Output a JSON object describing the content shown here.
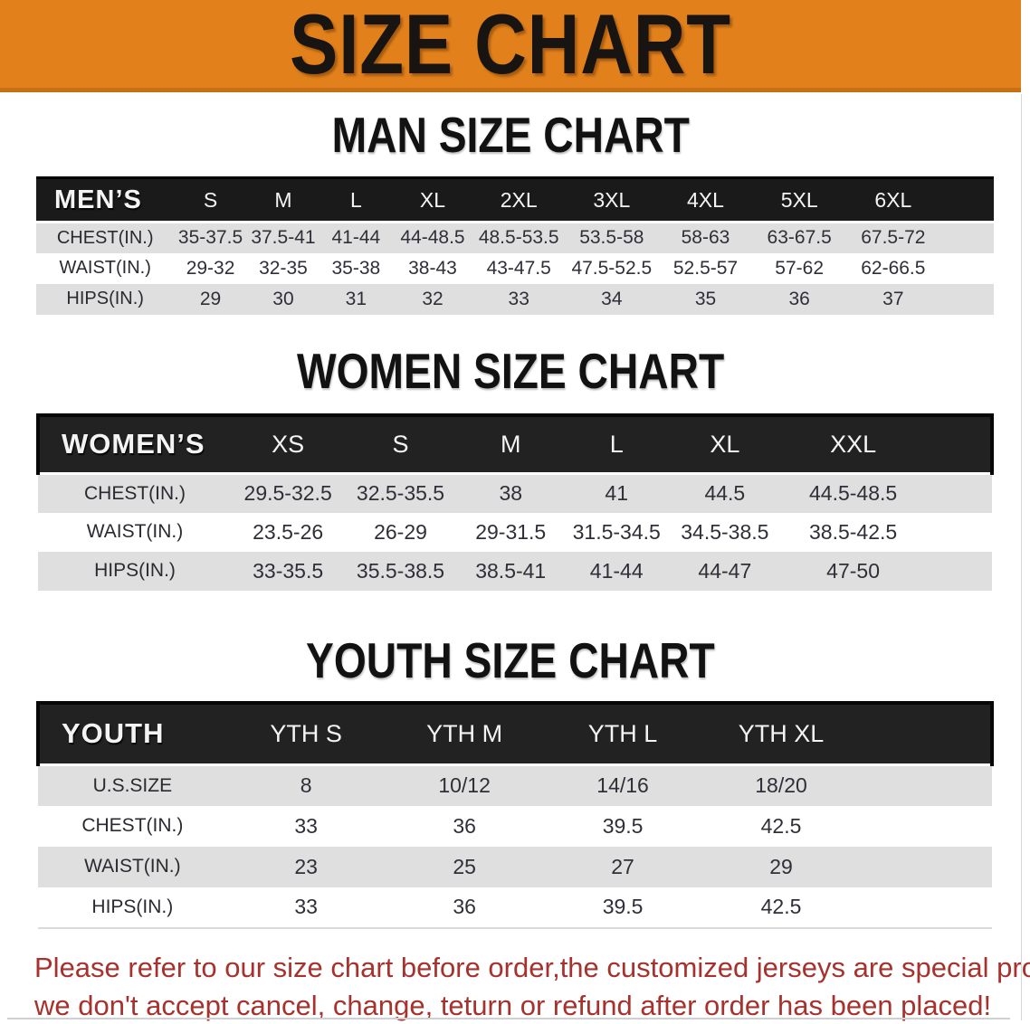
{
  "banner": {
    "title": "SIZE CHART"
  },
  "sections": {
    "men": {
      "heading": "MAN SIZE CHART"
    },
    "women": {
      "heading": "WOMEN SIZE CHART"
    },
    "youth": {
      "heading": "YOUTH SIZE CHART"
    }
  },
  "tables": {
    "men": {
      "label": "MEN’S",
      "sizes": [
        "S",
        "M",
        "L",
        "XL",
        "2XL",
        "3XL",
        "4XL",
        "5XL",
        "6XL"
      ],
      "col_widths": [
        "14.4%",
        "7.6%",
        "7.6%",
        "7.6%",
        "8.4%",
        "9.6%",
        "9.8%",
        "9.8%",
        "9.8%",
        "9.8%",
        "5.6%"
      ],
      "rows": [
        {
          "label": "CHEST(IN.)",
          "values": [
            "35-37.5",
            "37.5-41",
            "41-44",
            "44-48.5",
            "48.5-53.5",
            "53.5-58",
            "58-63",
            "63-67.5",
            "67.5-72"
          ]
        },
        {
          "label": "WAIST(IN.)",
          "values": [
            "29-32",
            "32-35",
            "35-38",
            "38-43",
            "43-47.5",
            "47.5-52.5",
            "52.5-57",
            "57-62",
            "62-66.5"
          ]
        },
        {
          "label": "HIPS(IN.)",
          "values": [
            "29",
            "30",
            "31",
            "32",
            "33",
            "34",
            "35",
            "36",
            "37"
          ]
        }
      ]
    },
    "women": {
      "label": "WOMEN’S",
      "sizes": [
        "XS",
        "S",
        "M",
        "L",
        "XL",
        "XXL"
      ],
      "col_widths": [
        "20.3%",
        "11.8%",
        "11.8%",
        "11.3%",
        "10.9%",
        "11.8%",
        "15.1%",
        "7.0%"
      ],
      "rows": [
        {
          "label": "CHEST(IN.)",
          "values": [
            "29.5-32.5",
            "32.5-35.5",
            "38",
            "41",
            "44.5",
            "44.5-48.5"
          ]
        },
        {
          "label": "WAIST(IN.)",
          "values": [
            "23.5-26",
            "26-29",
            "29-31.5",
            "31.5-34.5",
            "34.5-38.5",
            "38.5-42.5"
          ]
        },
        {
          "label": "HIPS(IN.)",
          "values": [
            "33-35.5",
            "35.5-38.5",
            "38.5-41",
            "41-44",
            "44-47",
            "47-50"
          ]
        }
      ]
    },
    "youth": {
      "label": "YOUTH",
      "sizes": [
        "YTH S",
        "YTH M",
        "YTH L",
        "YTH XL"
      ],
      "col_widths": [
        "19.8%",
        "16.6%",
        "16.6%",
        "16.6%",
        "16.6%",
        "13.8%"
      ],
      "rows": [
        {
          "label": "U.S.SIZE",
          "values": [
            "8",
            "10/12",
            "14/16",
            "18/20"
          ]
        },
        {
          "label": "CHEST(IN.)",
          "values": [
            "33",
            "36",
            "39.5",
            "42.5"
          ]
        },
        {
          "label": "WAIST(IN.)",
          "values": [
            "23",
            "25",
            "27",
            "29"
          ]
        },
        {
          "label": "HIPS(IN.)",
          "values": [
            "33",
            "36",
            "39.5",
            "42.5"
          ]
        }
      ]
    }
  },
  "note": {
    "lines": [
      "Please refer to our size chart before order,the customized jerseys are special products,",
      "we don't accept cancel, change, teturn or refund after order has been placed!"
    ]
  },
  "colors": {
    "banner_background": "#e2811c",
    "banner_edge": "#c86f12",
    "table_header_background": "#1a1a1a",
    "row_shade": "#dfdfdf",
    "note_text": "#a7322d"
  }
}
